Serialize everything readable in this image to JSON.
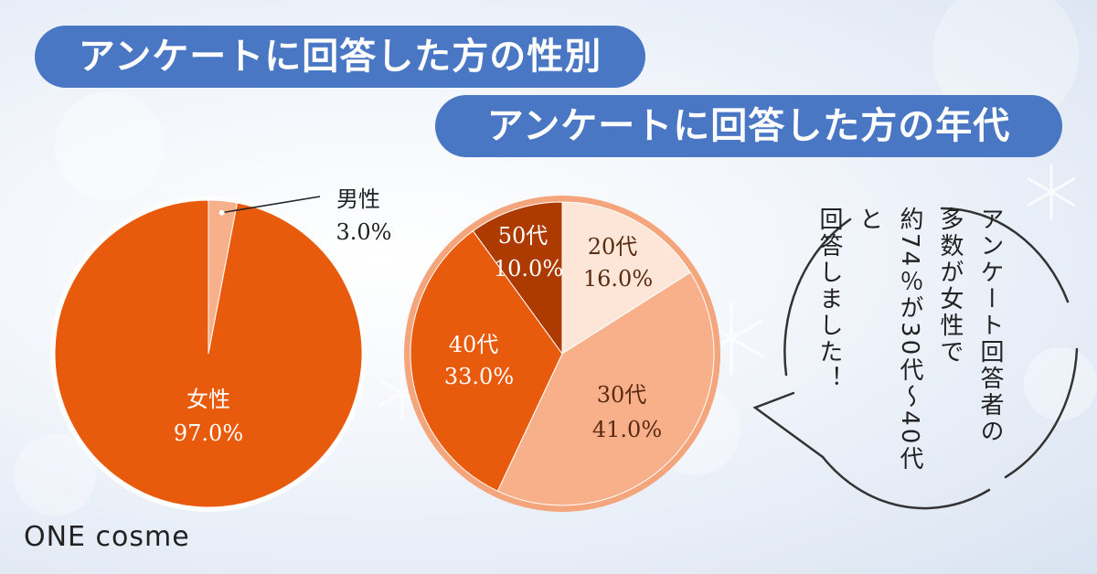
{
  "titles": {
    "gender": "アンケートに回答した方の性別",
    "age": "アンケートに回答した方の年代"
  },
  "chart_data": [
    {
      "type": "pie",
      "title": "アンケートに回答した方の性別",
      "slices": [
        {
          "label": "男性",
          "value": 3.0,
          "value_text": "3.0%",
          "color": "#f8b08a"
        },
        {
          "label": "女性",
          "value": 97.0,
          "value_text": "97.0%",
          "color": "#e85a0c"
        }
      ]
    },
    {
      "type": "pie",
      "title": "アンケートに回答した方の年代",
      "slices": [
        {
          "label": "20代",
          "value": 16.0,
          "value_text": "16.0%",
          "color": "#fde6d8"
        },
        {
          "label": "30代",
          "value": 41.0,
          "value_text": "41.0%",
          "color": "#f8b08a"
        },
        {
          "label": "40代",
          "value": 33.0,
          "value_text": "33.0%",
          "color": "#e85a0c"
        },
        {
          "label": "50代",
          "value": 10.0,
          "value_text": "10.0%",
          "color": "#ad3b00"
        }
      ]
    }
  ],
  "bubble": {
    "lines": [
      "アンケート回答者の",
      "多数が女性で",
      "約74％が30代～40代と",
      "回答しました！"
    ]
  },
  "logo": "ONE cosme"
}
